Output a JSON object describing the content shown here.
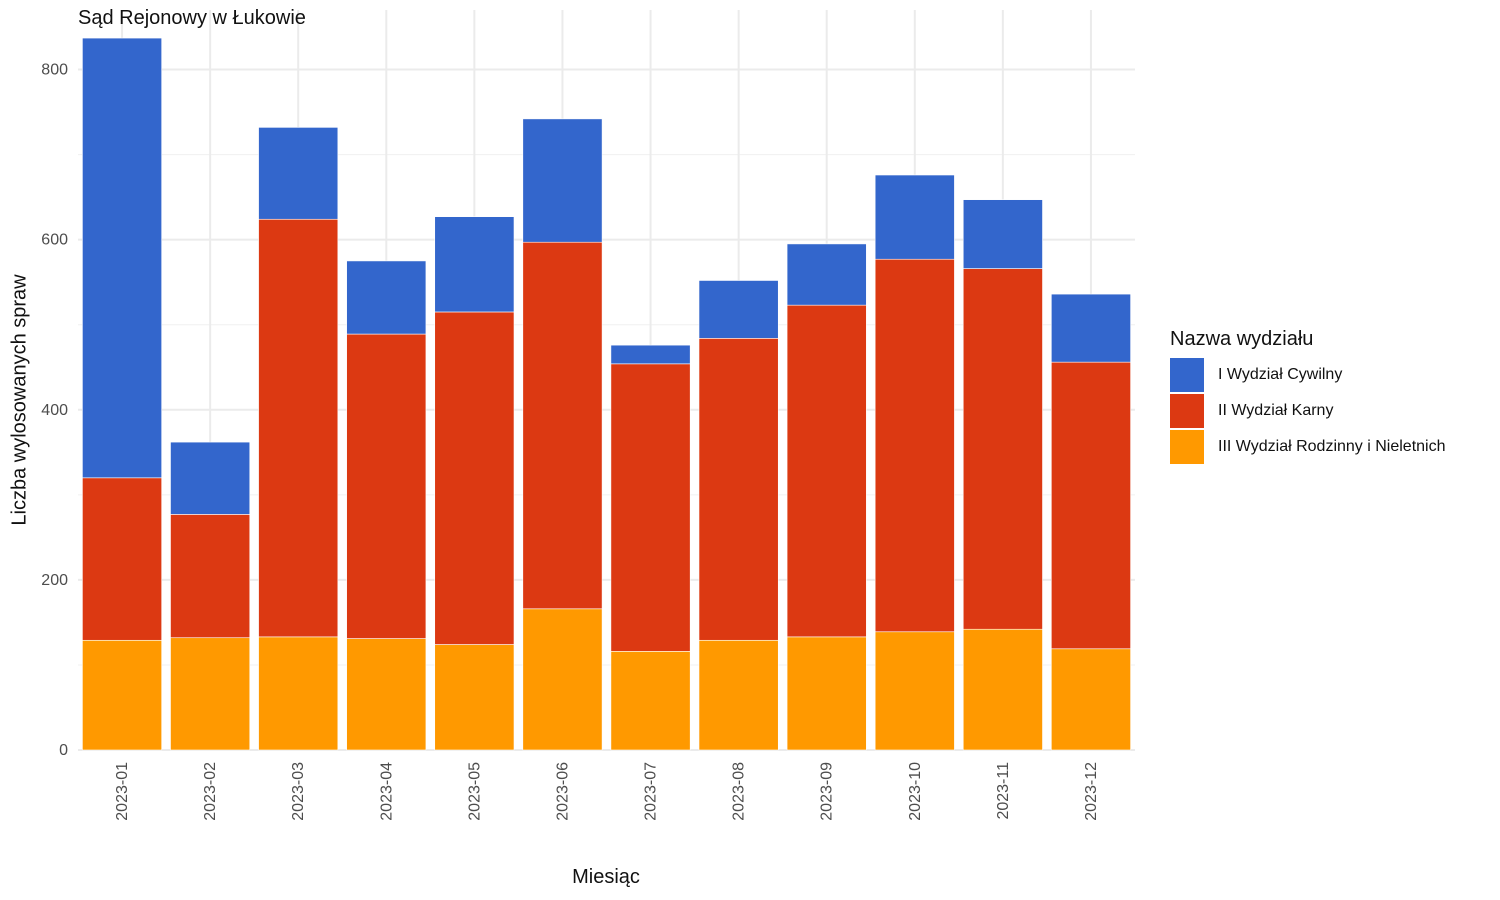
{
  "chart_data": {
    "type": "bar",
    "stacked": true,
    "title": "Sąd Rejonowy w Łukowie",
    "xlabel": "Miesiąc",
    "ylabel": "Liczba wylosowanych spraw",
    "ylim": [
      0,
      870
    ],
    "yticks": [
      0,
      200,
      400,
      600,
      800
    ],
    "grid": true,
    "legend_position": "right",
    "legend_title": "Nazwa wydziału",
    "categories": [
      "2023-01",
      "2023-02",
      "2023-03",
      "2023-04",
      "2023-05",
      "2023-06",
      "2023-07",
      "2023-08",
      "2023-09",
      "2023-10",
      "2023-11",
      "2023-12"
    ],
    "series": [
      {
        "name": "III Wydział Rodzinny i Nieletnich",
        "color": "#FF9900",
        "values": [
          129,
          132,
          133,
          131,
          124,
          166,
          116,
          129,
          133,
          139,
          142,
          119
        ]
      },
      {
        "name": "II Wydział Karny",
        "color": "#DC3912",
        "values": [
          191,
          145,
          491,
          358,
          391,
          431,
          338,
          355,
          390,
          438,
          424,
          337
        ]
      },
      {
        "name": "I Wydział Cywilny",
        "color": "#3366CC",
        "values": [
          517,
          85,
          108,
          86,
          112,
          145,
          22,
          68,
          72,
          99,
          81,
          80
        ]
      }
    ]
  }
}
